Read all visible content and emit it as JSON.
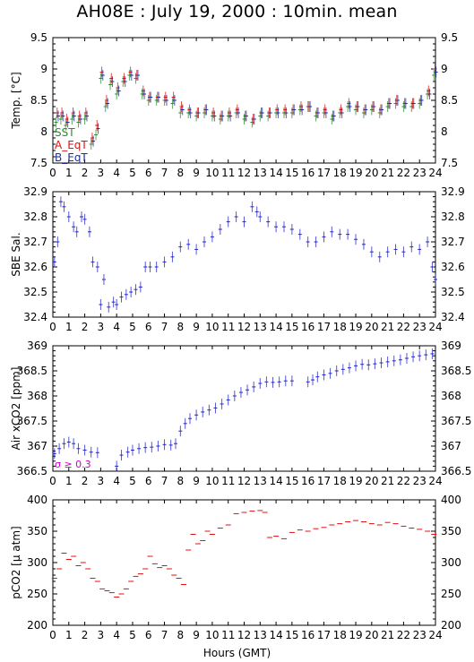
{
  "title": "AH08E : July 19, 2000 : 10min. mean",
  "xlabel": "Hours (GMT)",
  "chart_data": [
    {
      "type": "scatter",
      "ylabel": "Temp. [°C]",
      "ylim": [
        7.5,
        9.5
      ],
      "yticks": [
        7.5,
        8,
        8.5,
        9,
        9.5
      ],
      "xlim": [
        0,
        24
      ],
      "legend": {
        "placement": "bottom-left"
      },
      "series": [
        {
          "name": "SST",
          "color": "#2e8b2e",
          "x": [
            0.2,
            0.5,
            0.8,
            1.2,
            1.6,
            2.0,
            2.4,
            2.7,
            3.0,
            3.3,
            3.6,
            4.0,
            4.4,
            4.8,
            5.2,
            5.6,
            6.0,
            6.5,
            7.0,
            7.5,
            8.0,
            8.5,
            9.0,
            9.5,
            10.0,
            10.5,
            11.0,
            11.5,
            12.0,
            12.5,
            13.0,
            13.5,
            14.0,
            14.5,
            15.0,
            15.5,
            16.0,
            16.5,
            17.0,
            17.5,
            18.0,
            18.5,
            19.0,
            19.5,
            20.0,
            20.5,
            21.0,
            21.5,
            22.0,
            22.5,
            23.0,
            23.5,
            23.9
          ],
          "y": [
            8.15,
            8.2,
            8.1,
            8.2,
            8.15,
            8.2,
            7.8,
            7.95,
            8.85,
            8.4,
            8.75,
            8.6,
            8.8,
            8.9,
            8.85,
            8.6,
            8.5,
            8.5,
            8.5,
            8.45,
            8.3,
            8.3,
            8.25,
            8.3,
            8.25,
            8.2,
            8.25,
            8.3,
            8.2,
            8.15,
            8.25,
            8.25,
            8.3,
            8.3,
            8.3,
            8.35,
            8.4,
            8.25,
            8.3,
            8.2,
            8.3,
            8.4,
            8.35,
            8.3,
            8.35,
            8.3,
            8.4,
            8.45,
            8.4,
            8.4,
            8.45,
            8.6,
            8.9
          ]
        },
        {
          "name": "A_EqT",
          "color": "#dd1111",
          "x": [
            0.2,
            0.5,
            0.8,
            1.2,
            1.6,
            2.0,
            2.4,
            2.7,
            3.0,
            3.3,
            3.6,
            4.0,
            4.4,
            4.8,
            5.2,
            5.6,
            6.0,
            6.5,
            7.0,
            7.5,
            8.0,
            8.5,
            9.0,
            9.5,
            10.0,
            10.5,
            11.0,
            11.5,
            12.0,
            12.5,
            13.0,
            13.5,
            14.0,
            14.5,
            15.0,
            15.5,
            16.0,
            16.5,
            17.0,
            17.5,
            18.0,
            18.5,
            19.0,
            19.5,
            20.0,
            20.5,
            21.0,
            21.5,
            22.0,
            22.5,
            23.0,
            23.5,
            23.9
          ],
          "y": [
            8.3,
            8.3,
            8.2,
            8.3,
            8.25,
            8.3,
            7.9,
            8.1,
            8.95,
            8.5,
            8.85,
            8.7,
            8.85,
            8.95,
            8.9,
            8.65,
            8.55,
            8.55,
            8.55,
            8.55,
            8.4,
            8.35,
            8.3,
            8.35,
            8.3,
            8.25,
            8.3,
            8.35,
            8.25,
            8.2,
            8.3,
            8.3,
            8.35,
            8.35,
            8.35,
            8.4,
            8.4,
            8.3,
            8.35,
            8.25,
            8.35,
            8.45,
            8.4,
            8.35,
            8.4,
            8.35,
            8.45,
            8.5,
            8.45,
            8.45,
            8.5,
            8.65,
            9.0
          ]
        },
        {
          "name": "B_EqT",
          "color": "#1f2f9f",
          "x": [
            0.2,
            0.5,
            0.8,
            1.2,
            1.6,
            2.0,
            2.4,
            2.7,
            3.0,
            3.3,
            3.6,
            4.0,
            4.4,
            4.8,
            5.2,
            5.6,
            6.0,
            6.5,
            7.0,
            7.5,
            8.0,
            8.5,
            9.0,
            9.5,
            10.0,
            10.5,
            11.0,
            11.5,
            12.0,
            12.5,
            13.0,
            13.5,
            14.0,
            14.5,
            15.0,
            15.5,
            16.0,
            16.5,
            17.0,
            17.5,
            18.0,
            18.5,
            19.0,
            19.5,
            20.0,
            20.5,
            21.0,
            21.5,
            22.0,
            22.5,
            23.0,
            23.5,
            23.9
          ],
          "y": [
            8.25,
            8.25,
            8.15,
            8.25,
            8.2,
            8.25,
            7.85,
            8.05,
            8.9,
            8.45,
            8.8,
            8.65,
            8.8,
            8.9,
            8.9,
            8.6,
            8.55,
            8.55,
            8.5,
            8.5,
            8.35,
            8.3,
            8.3,
            8.35,
            8.25,
            8.25,
            8.25,
            8.3,
            8.25,
            8.2,
            8.3,
            8.3,
            8.3,
            8.3,
            8.35,
            8.35,
            8.4,
            8.3,
            8.3,
            8.25,
            8.3,
            8.4,
            8.4,
            8.35,
            8.4,
            8.35,
            8.45,
            8.5,
            8.45,
            8.45,
            8.5,
            8.6,
            8.95
          ]
        }
      ]
    },
    {
      "type": "scatter",
      "ylabel": "SBE Sal.",
      "ylim": [
        32.4,
        32.9
      ],
      "yticks": [
        32.4,
        32.5,
        32.6,
        32.7,
        32.8,
        32.9
      ],
      "xlim": [
        0,
        24
      ],
      "series": [
        {
          "name": "",
          "color": "#2222cc",
          "x": [
            0.1,
            0.3,
            0.5,
            0.7,
            1.0,
            1.3,
            1.5,
            1.8,
            2.0,
            2.3,
            2.5,
            2.8,
            3.0,
            3.2,
            3.5,
            3.8,
            4.0,
            4.3,
            4.6,
            4.9,
            5.2,
            5.5,
            5.8,
            6.1,
            6.5,
            7.0,
            7.5,
            8.0,
            8.5,
            9.0,
            9.5,
            10.0,
            10.5,
            11.0,
            11.5,
            12.0,
            12.5,
            12.8,
            13.0,
            13.5,
            14.0,
            14.5,
            15.0,
            15.5,
            16.0,
            16.5,
            17.0,
            17.5,
            18.0,
            18.5,
            19.0,
            19.5,
            20.0,
            20.5,
            21.0,
            21.5,
            22.0,
            22.5,
            23.0,
            23.5,
            23.8,
            24.0
          ],
          "y": [
            32.62,
            32.7,
            32.86,
            32.84,
            32.8,
            32.76,
            32.74,
            32.8,
            32.79,
            32.74,
            32.62,
            32.6,
            32.45,
            32.55,
            32.44,
            32.46,
            32.45,
            32.48,
            32.49,
            32.5,
            32.51,
            32.52,
            32.6,
            32.6,
            32.6,
            32.62,
            32.64,
            32.68,
            32.69,
            32.67,
            32.7,
            32.72,
            32.75,
            32.78,
            32.8,
            32.78,
            32.84,
            32.82,
            32.8,
            32.78,
            32.76,
            32.76,
            32.75,
            32.73,
            32.7,
            32.7,
            32.72,
            32.74,
            32.73,
            32.73,
            32.71,
            32.69,
            32.66,
            32.64,
            32.66,
            32.67,
            32.66,
            32.68,
            32.67,
            32.7,
            32.6,
            32.55
          ]
        }
      ]
    },
    {
      "type": "scatter",
      "ylabel": "Air xCO2 [ppm]",
      "ylim": [
        366.5,
        369
      ],
      "yticks": [
        366.5,
        367,
        367.5,
        368,
        368.5,
        369
      ],
      "xlim": [
        0,
        24
      ],
      "annotation": "σ ≥ 0.3",
      "series": [
        {
          "name": "",
          "color": "#2222cc",
          "x": [
            0.1,
            0.4,
            0.7,
            1.0,
            1.3,
            1.6,
            2.0,
            2.4,
            2.8,
            4.0,
            4.3,
            4.7,
            5.0,
            5.4,
            5.8,
            6.2,
            6.6,
            7.0,
            7.4,
            7.7,
            8.0,
            8.3,
            8.6,
            9.0,
            9.4,
            9.8,
            10.2,
            10.6,
            11.0,
            11.4,
            11.8,
            12.2,
            12.6,
            13.0,
            13.4,
            13.8,
            14.2,
            14.6,
            15.0,
            16.0,
            16.3,
            16.6,
            17.0,
            17.4,
            17.8,
            18.2,
            18.6,
            19.0,
            19.4,
            19.8,
            20.2,
            20.6,
            21.0,
            21.4,
            21.8,
            22.2,
            22.6,
            23.0,
            23.4,
            23.8
          ],
          "y": [
            366.85,
            366.95,
            367.05,
            367.08,
            367.05,
            366.95,
            366.92,
            366.88,
            366.87,
            366.6,
            366.82,
            366.88,
            366.92,
            366.95,
            366.97,
            366.98,
            367.0,
            367.03,
            367.02,
            367.05,
            367.3,
            367.45,
            367.55,
            367.62,
            367.68,
            367.72,
            367.76,
            367.84,
            367.92,
            368.0,
            368.07,
            368.12,
            368.18,
            368.25,
            368.28,
            368.27,
            368.28,
            368.3,
            368.3,
            368.28,
            368.32,
            368.38,
            368.42,
            368.45,
            368.5,
            368.53,
            368.56,
            368.6,
            368.63,
            368.62,
            368.64,
            368.66,
            368.68,
            368.7,
            368.72,
            368.75,
            368.78,
            368.8,
            368.82,
            368.84
          ]
        }
      ]
    },
    {
      "type": "scatter",
      "ylabel": "pCO2 [μ atm]",
      "ylim": [
        200,
        400
      ],
      "yticks": [
        200,
        250,
        300,
        350,
        400
      ],
      "xlim": [
        0,
        24
      ],
      "series": [
        {
          "name": "",
          "color": "#e01010",
          "x": [
            0.1,
            0.4,
            0.7,
            1.0,
            1.3,
            1.6,
            1.9,
            2.2,
            2.5,
            2.8,
            3.1,
            3.4,
            3.7,
            4.0,
            4.3,
            4.6,
            4.9,
            5.2,
            5.5,
            5.8,
            6.1,
            6.4,
            6.7,
            7.0,
            7.3,
            7.6,
            7.9,
            8.2,
            8.5,
            8.8,
            9.1,
            9.4,
            9.7,
            10.0,
            10.5,
            11.0,
            11.5,
            12.0,
            12.5,
            13.0,
            13.3,
            13.6,
            14.0,
            14.5,
            15.0,
            15.5,
            16.0,
            16.5,
            17.0,
            17.5,
            18.0,
            18.5,
            19.0,
            19.5,
            20.0,
            20.5,
            21.0,
            21.5,
            22.0,
            22.5,
            23.0,
            23.5,
            23.9
          ],
          "y": [
            275,
            290,
            315,
            305,
            310,
            295,
            300,
            290,
            275,
            270,
            258,
            255,
            252,
            245,
            250,
            258,
            270,
            278,
            282,
            290,
            310,
            298,
            292,
            295,
            290,
            280,
            275,
            265,
            320,
            345,
            330,
            335,
            350,
            345,
            355,
            360,
            378,
            380,
            382,
            383,
            380,
            340,
            342,
            338,
            348,
            352,
            350,
            354,
            356,
            360,
            362,
            365,
            367,
            365,
            362,
            360,
            364,
            362,
            358,
            355,
            353,
            350,
            345
          ]
        }
      ]
    }
  ]
}
